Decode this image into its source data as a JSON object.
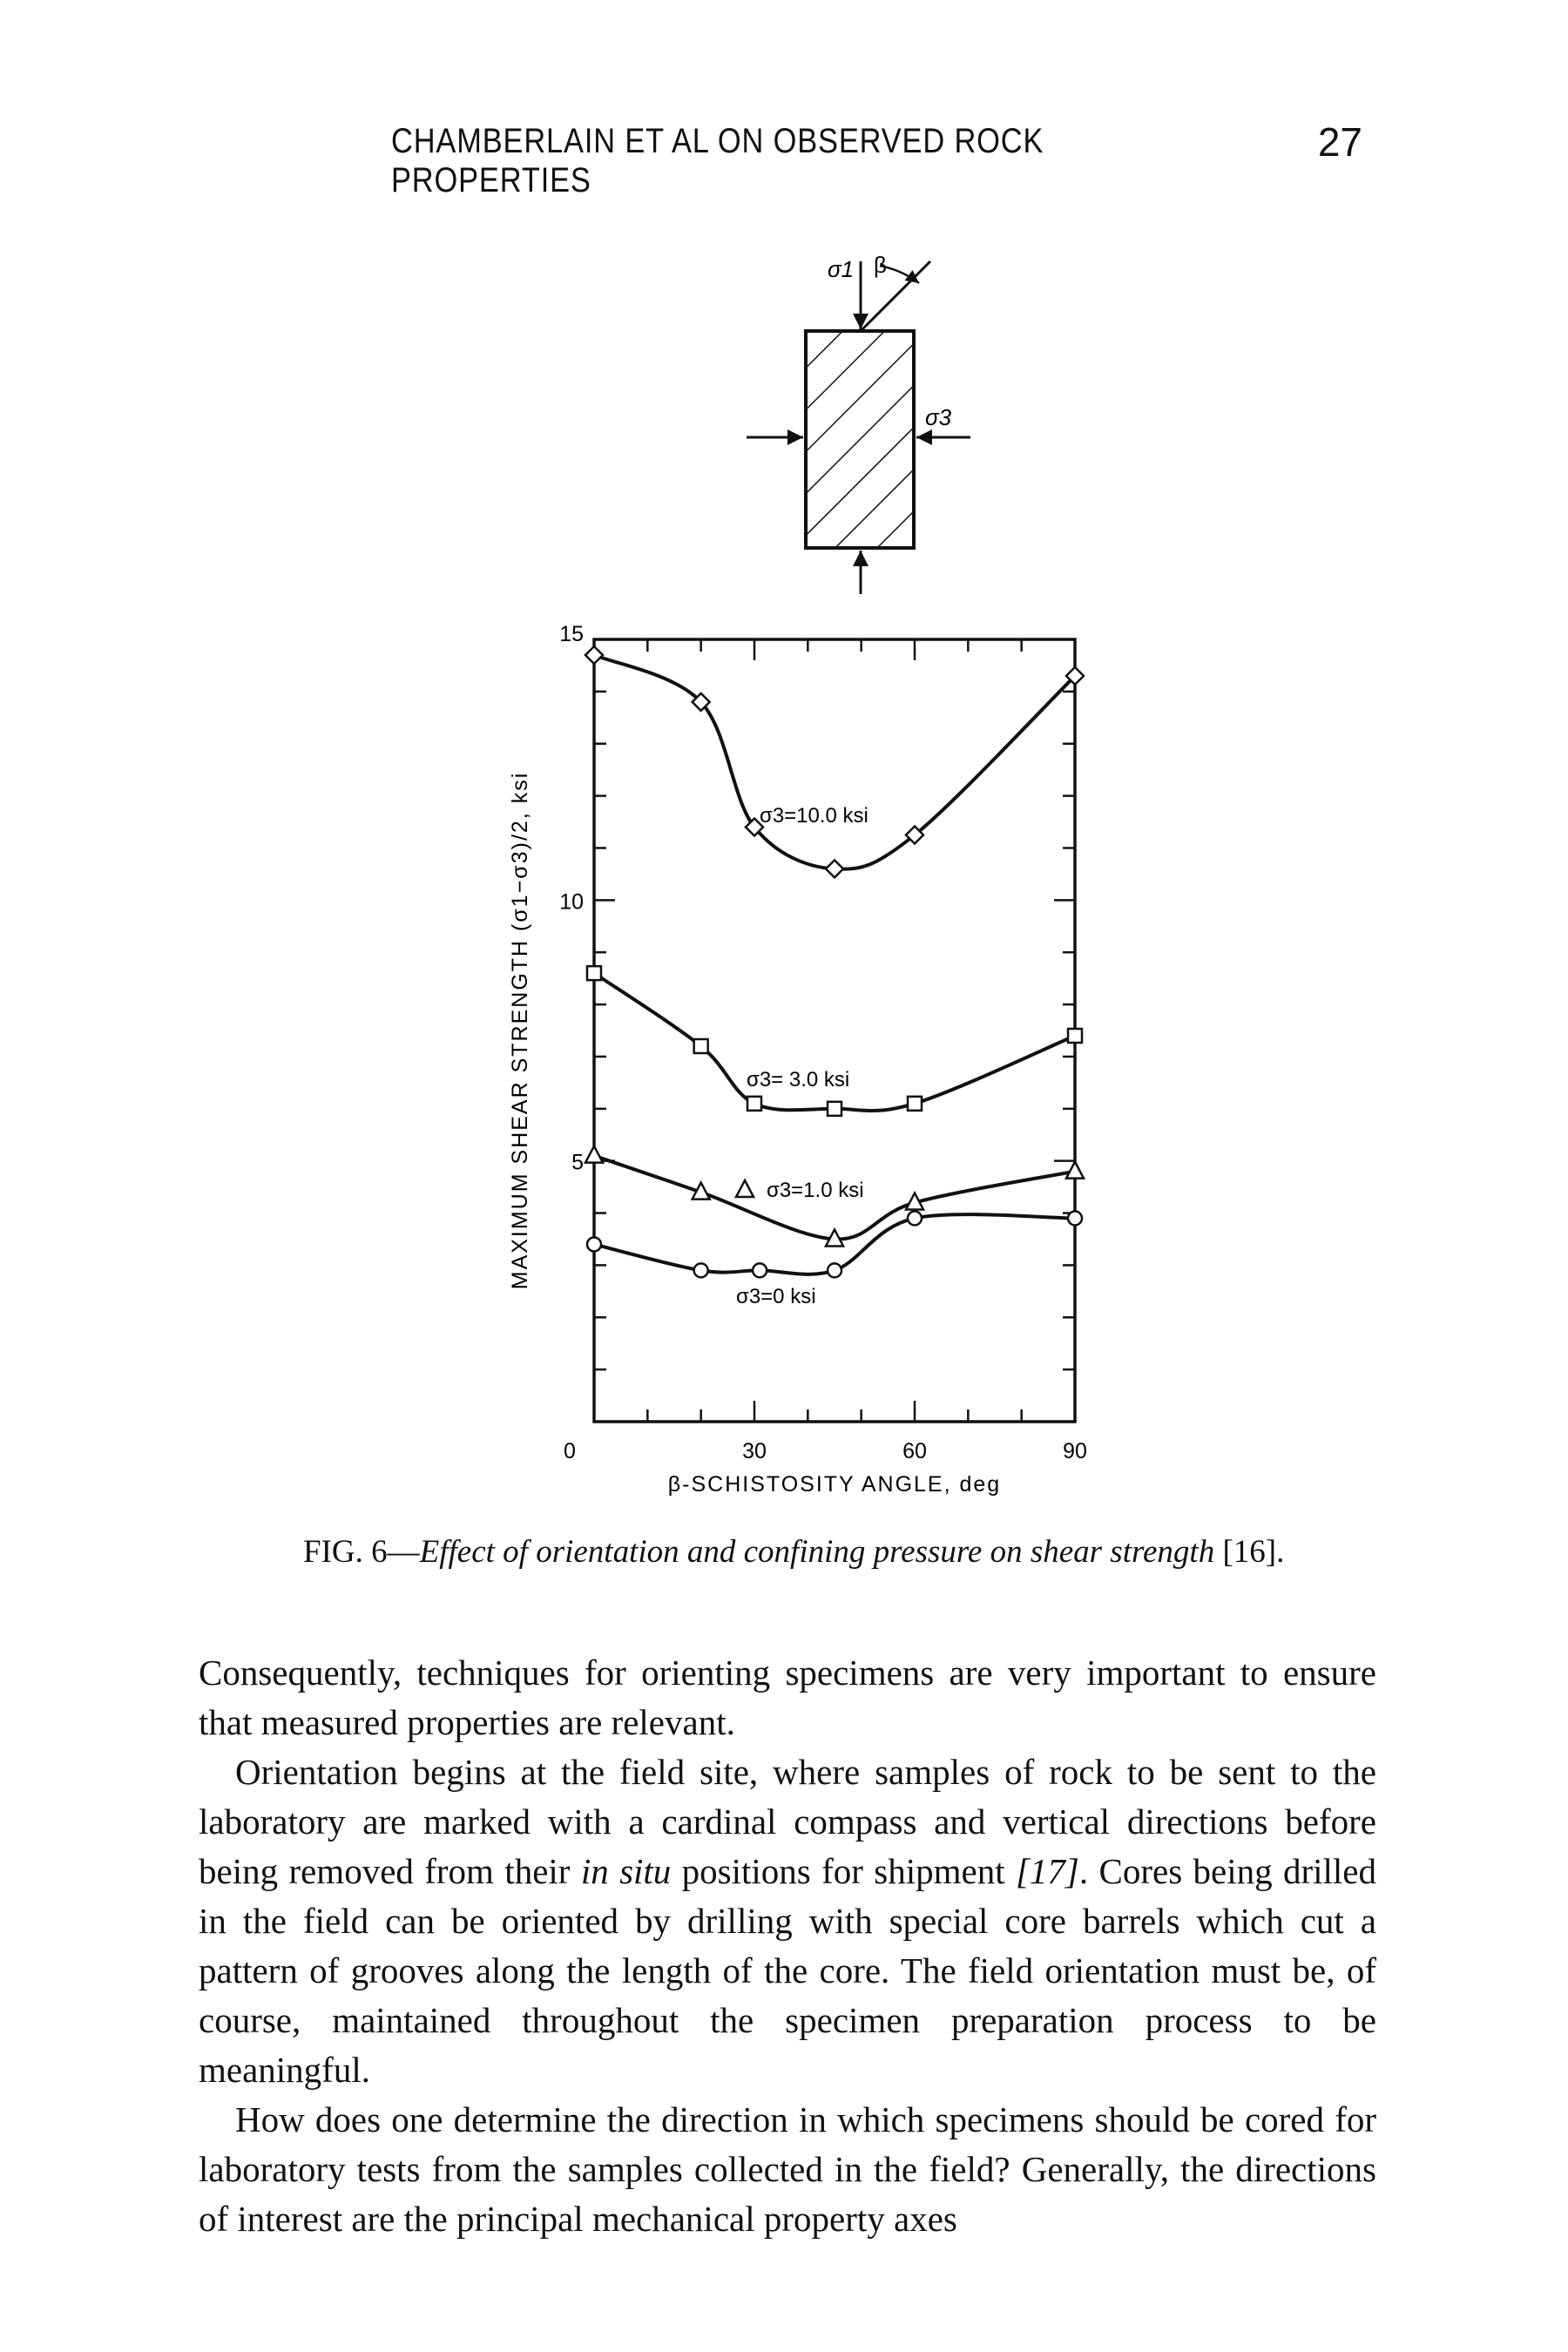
{
  "header": {
    "running_title": "CHAMBERLAIN ET AL ON OBSERVED ROCK PROPERTIES",
    "page_number": "27"
  },
  "diagram": {
    "sigma1_label": "σ1",
    "beta_label": "β",
    "sigma3_label": "σ3"
  },
  "chart_data": {
    "type": "line",
    "xlabel": "β-SCHISTOSITY ANGLE, deg",
    "ylabel": "MAXIMUM SHEAR STRENGTH (σ1−σ3)/2, ksi",
    "xlim": [
      0,
      90
    ],
    "ylim": [
      0,
      15
    ],
    "x_ticks": [
      "0",
      "30",
      "60",
      "90"
    ],
    "y_ticks": [
      "15",
      "10",
      "5"
    ],
    "grid": false,
    "series": [
      {
        "name": "σ3=10.0 ksi",
        "marker": "diamond",
        "x": [
          0,
          20,
          30,
          45,
          60,
          90
        ],
        "y": [
          14.7,
          13.8,
          11.4,
          10.6,
          11.25,
          14.3
        ]
      },
      {
        "name": "σ3= 3.0 ksi",
        "marker": "square",
        "x": [
          0,
          20,
          30,
          45,
          60,
          90
        ],
        "y": [
          8.6,
          7.2,
          6.1,
          6.0,
          6.1,
          7.4
        ]
      },
      {
        "name": "σ3=1.0 ksi",
        "marker": "triangle",
        "x": [
          0,
          20,
          45,
          60,
          90
        ],
        "y": [
          5.1,
          4.4,
          3.5,
          4.2,
          4.8
        ]
      },
      {
        "name": "σ3=0 ksi",
        "marker": "circle",
        "x": [
          0,
          20,
          31,
          45,
          60,
          90
        ],
        "y": [
          3.4,
          2.9,
          2.9,
          2.9,
          3.9,
          3.9
        ]
      }
    ]
  },
  "caption": {
    "label": "FIG. 6—",
    "text": "Effect of orientation and confining pressure on shear strength",
    "ref": " [16]."
  },
  "body": {
    "p1": "Consequently, techniques for orienting specimens are very important to ensure that measured properties are relevant.",
    "p2a": "Orientation begins at the field site, where samples of rock to be sent to the laboratory are marked with a cardinal compass and vertical directions before being removed from their ",
    "p2_italic": "in situ",
    "p2b": " positions for shipment ",
    "p2_ref": "[17]",
    "p2c": ". Cores being drilled in the field can be oriented by drilling with special core barrels which cut a pattern of grooves along the length of the core. The field orientation must be, of course, maintained throughout the specimen preparation process to be meaningful.",
    "p3": "How does one determine the direction in which specimens should be cored for laboratory tests from the samples collected in the field? Generally, the directions of interest are the principal mechanical property axes"
  }
}
